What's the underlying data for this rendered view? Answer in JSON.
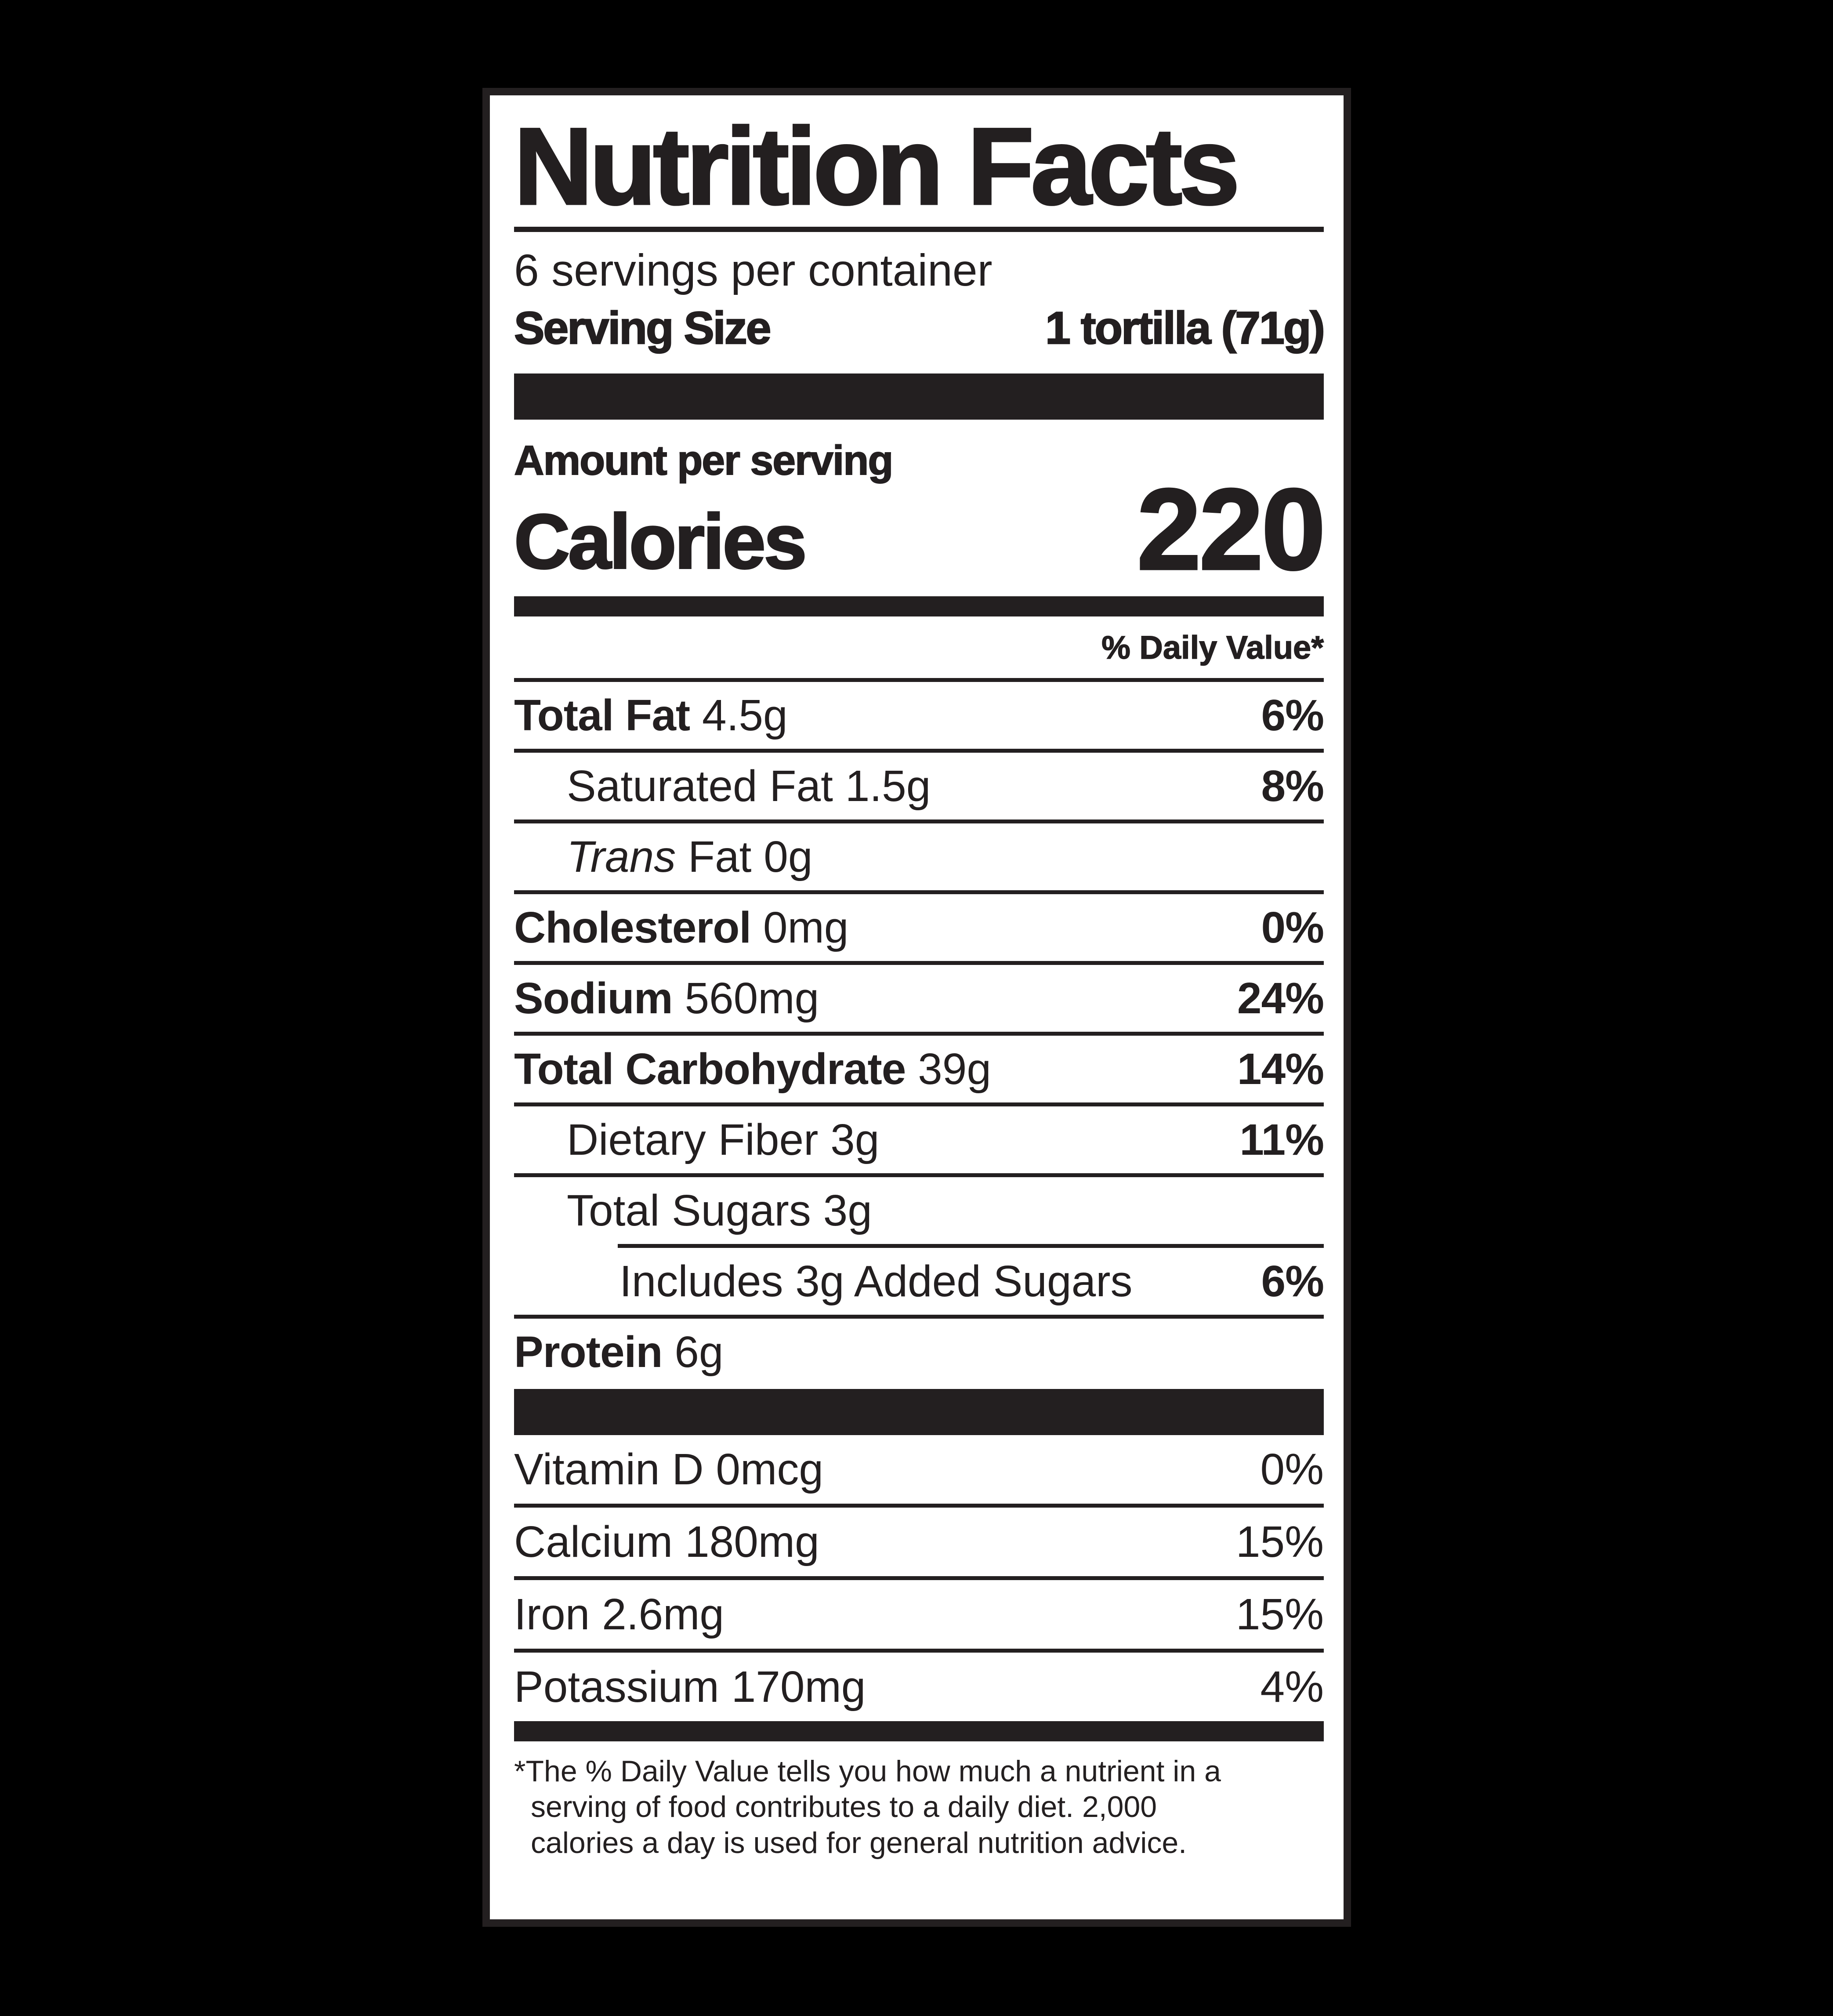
{
  "colors": {
    "background": "#000000",
    "paper": "#ffffff",
    "ink": "#231f20"
  },
  "label": {
    "title": "Nutrition Facts",
    "servings_per_container": "6 servings per container",
    "serving_size_label": "Serving Size",
    "serving_size_value": "1 tortilla (71g)",
    "amount_per_serving": "Amount per serving",
    "calories_label": "Calories",
    "calories_value": "220",
    "daily_value_header": "% Daily Value*",
    "nutrients": [
      {
        "bold": "Total Fat",
        "text": "4.5g",
        "percent": "6%",
        "percent_bold": true,
        "indent": 0
      },
      {
        "text": "Saturated Fat 1.5g",
        "percent": "8%",
        "percent_bold": true,
        "indent": 1
      },
      {
        "italic": "Trans",
        "text": "Fat 0g",
        "percent": "",
        "indent": 1
      },
      {
        "bold": "Cholesterol",
        "text": "0mg",
        "percent": "0%",
        "percent_bold": true,
        "indent": 0
      },
      {
        "bold": "Sodium",
        "text": "560mg",
        "percent": "24%",
        "percent_bold": true,
        "indent": 0
      },
      {
        "bold": "Total Carbohydrate",
        "text": "39g",
        "percent": "14%",
        "percent_bold": true,
        "indent": 0
      },
      {
        "text": "Dietary Fiber 3g",
        "percent": "11%",
        "percent_bold": true,
        "indent": 1
      },
      {
        "text": "Total Sugars 3g",
        "percent": "",
        "indent": 1
      },
      {
        "text": "Includes 3g Added Sugars",
        "percent": "6%",
        "percent_bold": true,
        "indent": 2,
        "rule_above_indent": 236
      },
      {
        "bold": "Protein",
        "text": "6g",
        "percent": "",
        "indent": 0
      }
    ],
    "vitamins": [
      {
        "text": "Vitamin D 0mcg",
        "percent": "0%"
      },
      {
        "text": "Calcium 180mg",
        "percent": "15%"
      },
      {
        "text": "Iron 2.6mg",
        "percent": "15%"
      },
      {
        "text": "Potassium 170mg",
        "percent": "4%"
      }
    ],
    "footnote_lines": [
      "*The % Daily Value tells you how much a nutrient in a",
      "serving of food contributes to a daily diet. 2,000",
      "calories a day is used for general nutrition advice."
    ]
  }
}
